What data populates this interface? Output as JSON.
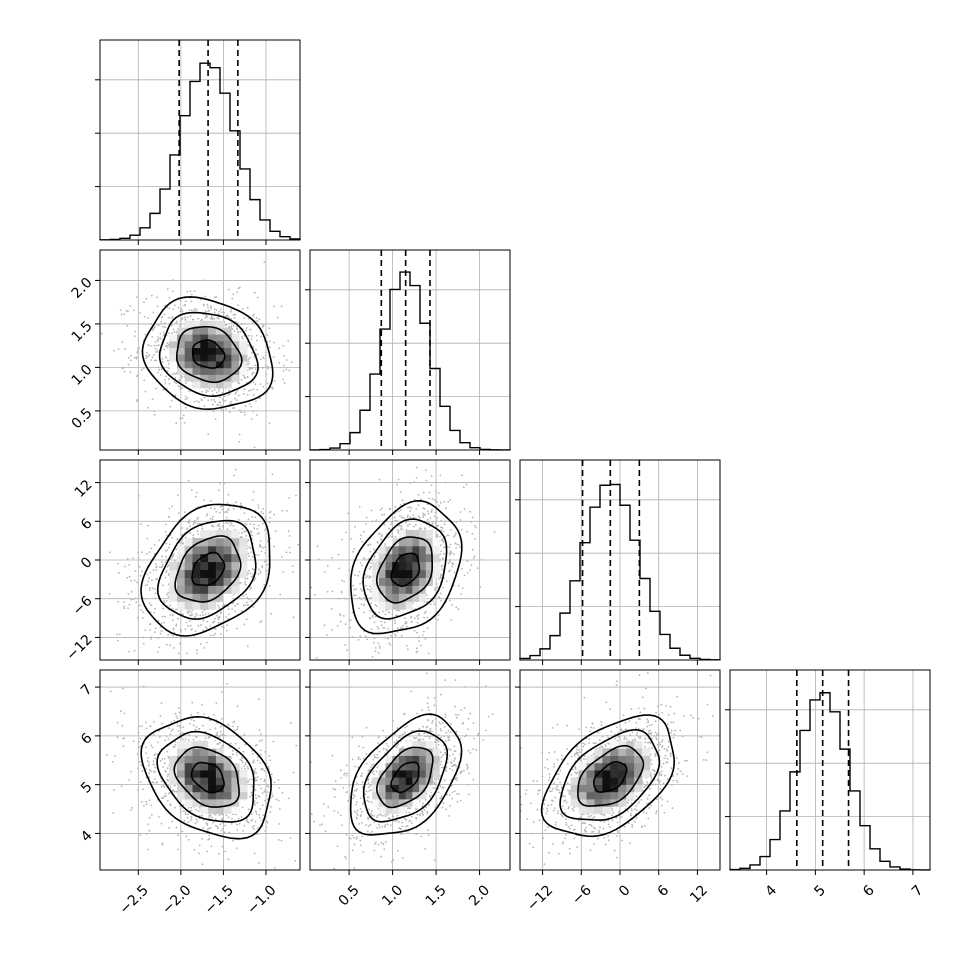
{
  "chart_data": {
    "type": "corner",
    "params": [
      {
        "range": [
          -2.95,
          -0.6
        ],
        "mean": -1.68,
        "sigma": 0.32,
        "quantiles": [
          -2.02,
          -1.68,
          -1.33
        ],
        "ticks": [
          -2.5,
          -2.0,
          -1.5,
          -1.0
        ],
        "tick_labels": [
          "−2.5",
          "−2.0",
          "−1.5",
          "−1.0"
        ]
      },
      {
        "range": [
          0.05,
          2.35
        ],
        "mean": 1.15,
        "sigma": 0.27,
        "quantiles": [
          0.87,
          1.15,
          1.43
        ],
        "ticks": [
          0.5,
          1.0,
          1.5,
          2.0
        ],
        "tick_labels": [
          "0.5",
          "1.0",
          "1.5",
          "2.0"
        ]
      },
      {
        "range": [
          -15.5,
          15.5
        ],
        "mean": -1.5,
        "sigma": 4.3,
        "quantiles": [
          -5.8,
          -1.5,
          3.0
        ],
        "ticks": [
          -12,
          -6,
          0,
          6,
          12
        ],
        "tick_labels": [
          "−12",
          "−6",
          "0",
          "6",
          "12"
        ]
      },
      {
        "range": [
          3.25,
          7.35
        ],
        "mean": 5.15,
        "sigma": 0.52,
        "quantiles": [
          4.62,
          5.15,
          5.68
        ],
        "ticks": [
          4,
          5,
          6,
          7
        ],
        "tick_labels": [
          "4",
          "5",
          "6",
          "7"
        ]
      }
    ],
    "correlations": [
      {
        "pair": [
          0,
          1
        ],
        "rho": -0.15
      },
      {
        "pair": [
          0,
          2
        ],
        "rho": 0.3
      },
      {
        "pair": [
          1,
          2
        ],
        "rho": 0.3
      },
      {
        "pair": [
          0,
          3
        ],
        "rho": -0.3
      },
      {
        "pair": [
          1,
          3
        ],
        "rho": 0.45
      },
      {
        "pair": [
          2,
          3
        ],
        "rho": 0.45
      }
    ],
    "histogram_bins": 20,
    "contour_levels_sigma": [
      0.5,
      1.0,
      1.5,
      2.0
    ],
    "scatter_color": "#b5b5b5",
    "density_color": "#000000",
    "grid": true
  }
}
